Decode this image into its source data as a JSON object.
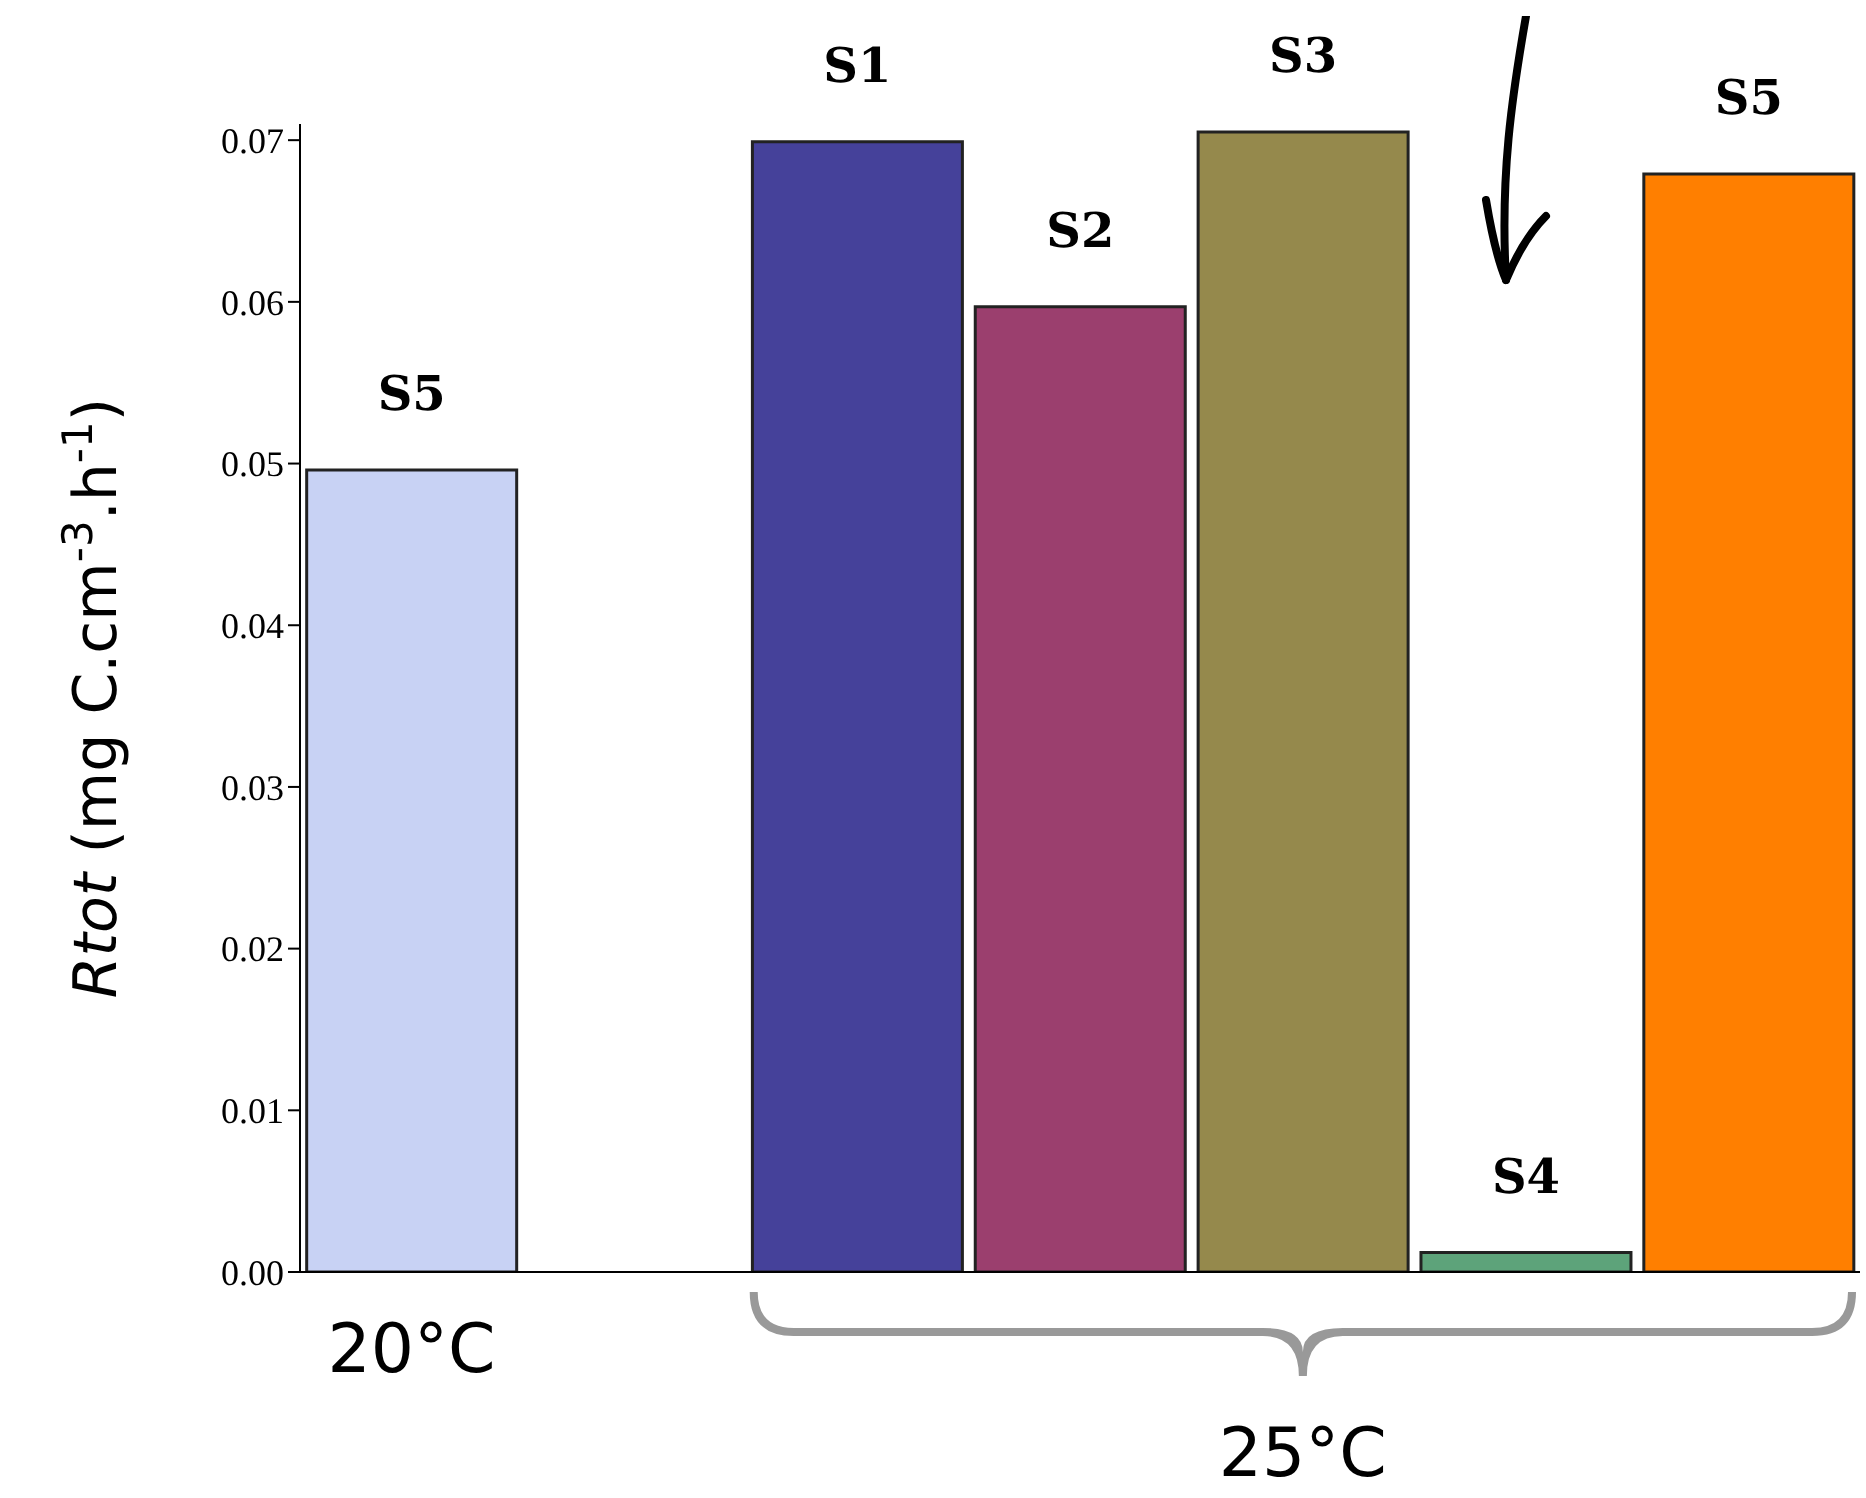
{
  "chart_data": {
    "type": "bar",
    "ylabel": "Rtot (mg C.cm$^{-3}$.h$^{-1}$)",
    "categories": [
      "S5",
      null,
      "S1",
      "S2",
      "S3",
      "S4",
      "S5"
    ],
    "values": [
      0.0496,
      null,
      0.0699,
      0.0597,
      0.0705,
      0.0012,
      0.0679
    ],
    "colors": [
      "#c8d2f4",
      "#ffffff",
      "#45419a",
      "#9b3f6e",
      "#95894c",
      "#5da37a",
      "#ff7f00"
    ],
    "ylim": [
      0,
      0.071
    ],
    "yticks": [
      {
        "value": 0,
        "label": "0.00"
      },
      {
        "value": 0.01,
        "label": "0.01"
      },
      {
        "value": 0.02,
        "label": "0.02"
      },
      {
        "value": 0.03,
        "label": "0.03"
      },
      {
        "value": 0.04,
        "label": "0.04"
      },
      {
        "value": 0.05,
        "label": "0.05"
      },
      {
        "value": 0.06,
        "label": "0.06"
      },
      {
        "value": 0.07,
        "label": "0.07"
      }
    ],
    "annotations": [
      "20°C",
      "25°C"
    ]
  }
}
